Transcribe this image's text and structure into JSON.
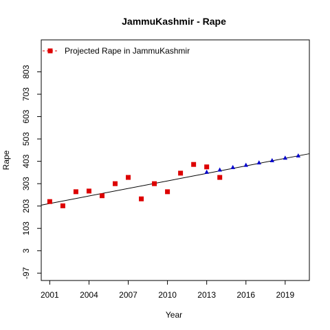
{
  "chart_data": {
    "type": "scatter",
    "title": "JammuKashmir  -  Rape",
    "xlabel": "Year",
    "ylabel": "Rape",
    "xlim": [
      2000.35,
      2020.85
    ],
    "ylim": [
      -130,
      946
    ],
    "x_ticks": [
      2001,
      2004,
      2007,
      2010,
      2013,
      2016,
      2019
    ],
    "y_ticks": [
      -97,
      3,
      103,
      203,
      303,
      403,
      503,
      603,
      703,
      803
    ],
    "legend": {
      "position": "top-left",
      "label": "Projected Rape in JammuKashmir"
    },
    "series": [
      {
        "name": "Projected Rape in JammuKashmir",
        "marker": "square",
        "color": "#dd0000",
        "points": [
          [
            2001,
            223
          ],
          [
            2002,
            204
          ],
          [
            2003,
            267
          ],
          [
            2004,
            270
          ],
          [
            2005,
            249
          ],
          [
            2006,
            303
          ],
          [
            2007,
            331
          ],
          [
            2008,
            235
          ],
          [
            2009,
            303
          ],
          [
            2010,
            267
          ],
          [
            2011,
            350
          ],
          [
            2012,
            389
          ],
          [
            2013,
            378
          ],
          [
            2014,
            331
          ]
        ]
      },
      {
        "marker": "triangle",
        "color": "#0000cc",
        "points": [
          [
            2013,
            355
          ],
          [
            2014,
            365
          ],
          [
            2015,
            376
          ],
          [
            2016,
            386
          ],
          [
            2017,
            397
          ],
          [
            2018,
            407
          ],
          [
            2019,
            418
          ],
          [
            2020,
            428
          ]
        ]
      }
    ],
    "trend_line": {
      "color": "#000000",
      "from": [
        2000.35,
        207
      ],
      "to": [
        2020.85,
        437
      ]
    }
  }
}
